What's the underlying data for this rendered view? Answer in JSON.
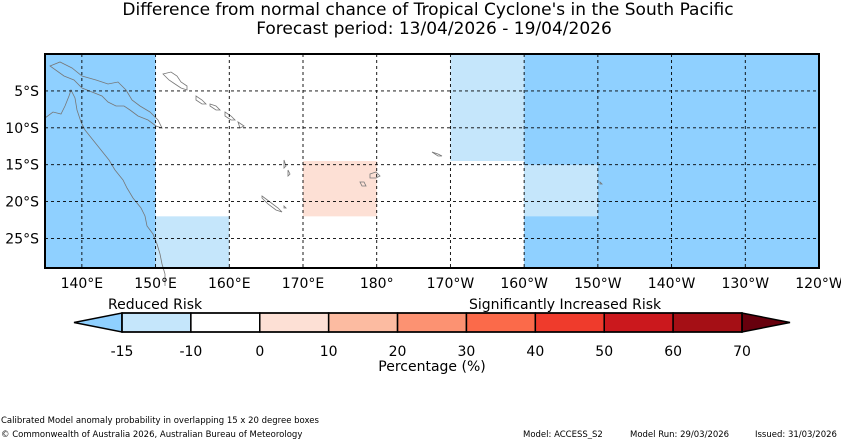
{
  "title": {
    "line1": "Difference from normal chance of Tropical Cyclone's in the South Pacific",
    "line2": "Forecast period: 13/04/2026 - 19/04/2026"
  },
  "map": {
    "lon_range": [
      135,
      240
    ],
    "lat_range": [
      -29,
      0
    ],
    "y_ticks": [
      {
        "lat": -5,
        "label": "5°S"
      },
      {
        "lat": -10,
        "label": "10°S"
      },
      {
        "lat": -15,
        "label": "15°S"
      },
      {
        "lat": -20,
        "label": "20°S"
      },
      {
        "lat": -25,
        "label": "25°S"
      }
    ],
    "x_ticks": [
      {
        "lon": 140,
        "label": "140°E"
      },
      {
        "lon": 150,
        "label": "150°E"
      },
      {
        "lon": 160,
        "label": "160°E"
      },
      {
        "lon": 170,
        "label": "170°E"
      },
      {
        "lon": 180,
        "label": "180°"
      },
      {
        "lon": 190,
        "label": "170°W"
      },
      {
        "lon": 200,
        "label": "160°W"
      },
      {
        "lon": 210,
        "label": "150°W"
      },
      {
        "lon": 220,
        "label": "140°W"
      },
      {
        "lon": 230,
        "label": "130°W"
      },
      {
        "lon": 240,
        "label": "120°W"
      }
    ],
    "anomaly_boxes": [
      {
        "lon": [
          135,
          150
        ],
        "lat": [
          -29,
          0
        ],
        "value_range": "-20 to -15",
        "color": "#8fd0ff"
      },
      {
        "lon": [
          200,
          240
        ],
        "lat": [
          -29,
          0
        ],
        "value_range": "-20 to -15",
        "color": "#8fd0ff"
      },
      {
        "lon": [
          150,
          160
        ],
        "lat": [
          -29,
          -22
        ],
        "value_range": "-15 to -10",
        "color": "#c5e6fb"
      },
      {
        "lon": [
          190,
          200
        ],
        "lat": [
          -14.5,
          0
        ],
        "value_range": "-15 to -10",
        "color": "#c5e6fb"
      },
      {
        "lon": [
          200,
          210
        ],
        "lat": [
          -22,
          -15
        ],
        "value_range": "-15 to -10",
        "color": "#c5e6fb"
      },
      {
        "lon": [
          170,
          180
        ],
        "lat": [
          -22,
          -14.5
        ],
        "value_range": "0 to 10",
        "color": "#fde0d5"
      }
    ]
  },
  "colorbar": {
    "left_label": "Reduced Risk",
    "right_label": "Significantly Increased Risk",
    "axis_label": "Percentage (%)",
    "tick_labels": [
      "-15",
      "-10",
      "0",
      "10",
      "20",
      "30",
      "40",
      "50",
      "60",
      "70"
    ],
    "under_color": "#8fd0ff",
    "over_color": "#67000d",
    "segment_colors": [
      "#c5e6fb",
      "#ffffff",
      "#fde0d5",
      "#fcbba1",
      "#fc9272",
      "#fb6a4a",
      "#ef3b2c",
      "#cb181d",
      "#a50f15"
    ]
  },
  "footer": {
    "note": "Calibrated Model anomaly probability in overlapping 15 x 20 degree boxes",
    "copyright": "© Commonwealth of Australia 2026, Australian Bureau of Meteorology",
    "model": "Model: ACCESS_S2",
    "model_run": "Model Run: 29/03/2026",
    "issued": "Issued: 31/03/2026"
  }
}
